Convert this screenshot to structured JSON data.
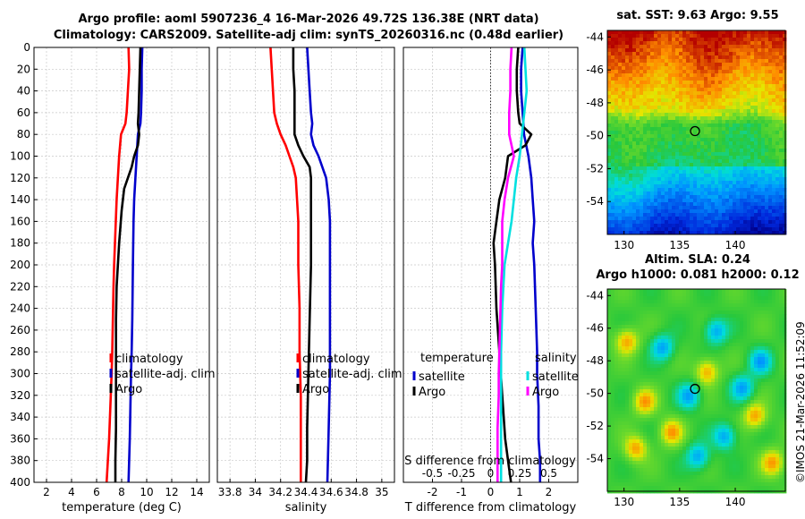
{
  "header": {
    "title_line1": "Argo profile: aoml 5907236_4 16-Mar-2026 49.72S 136.38E (NRT data)",
    "title_line2": "Climatology: CARS2009. Satellite-adj clim: synTS_20260316.nc (0.48d earlier)",
    "sst_title": "sat. SST: 9.63 Argo: 9.55",
    "sla_title1": "Altim. SLA: 0.24",
    "sla_title2": "Argo h1000: 0.081 h2000: 0.12",
    "credit": "©IMOS 21-Mar-2026 11:52:09"
  },
  "colors": {
    "climatology": "#ff0000",
    "satellite": "#0000cc",
    "argo": "#000000",
    "sal_satellite": "#00e0e0",
    "sal_argo": "#ff00ff",
    "grid": "#c8c8c8"
  },
  "chart_data": [
    {
      "type": "line",
      "id": "temperature",
      "xlabel": "temperature (deg C)",
      "xlim": [
        1,
        15
      ],
      "xticks": [
        "2",
        "4",
        "6",
        "8",
        "10",
        "12",
        "14"
      ],
      "ylim": [
        0,
        400
      ],
      "yticks": [
        "0",
        "20",
        "40",
        "60",
        "80",
        "100",
        "120",
        "140",
        "160",
        "180",
        "200",
        "220",
        "240",
        "260",
        "280",
        "300",
        "320",
        "340",
        "360",
        "380",
        "400"
      ],
      "legend": [
        "climatology",
        "satellite-adj. clim",
        "Argo"
      ],
      "series": [
        {
          "name": "climatology",
          "x": [
            8.55,
            8.6,
            8.5,
            8.4,
            8.3,
            7.95,
            7.8,
            7.6,
            7.5,
            7.4,
            7.35,
            7.3,
            7.25,
            7.2,
            7.1,
            7.0,
            6.9,
            6.8
          ],
          "depth": [
            0,
            20,
            40,
            60,
            70,
            80,
            100,
            140,
            170,
            200,
            220,
            250,
            280,
            300,
            330,
            360,
            380,
            400
          ]
        },
        {
          "name": "satellite-adj. clim",
          "x": [
            9.65,
            9.6,
            9.6,
            9.55,
            9.5,
            9.3,
            9.2,
            9.1,
            9.0,
            8.95,
            8.9,
            8.85,
            8.8,
            8.75,
            8.7,
            8.65,
            8.6,
            8.55
          ],
          "depth": [
            0,
            20,
            40,
            60,
            70,
            80,
            100,
            120,
            140,
            160,
            200,
            250,
            280,
            300,
            330,
            360,
            380,
            400
          ]
        },
        {
          "name": "Argo",
          "x": [
            9.5,
            9.45,
            9.4,
            9.35,
            9.3,
            9.4,
            9.3,
            9.0,
            8.8,
            8.5,
            8.2,
            8.0,
            7.8,
            7.7,
            7.6,
            7.55,
            7.55,
            7.55,
            7.5,
            7.5
          ],
          "depth": [
            0,
            20,
            40,
            60,
            70,
            80,
            90,
            100,
            110,
            120,
            130,
            150,
            180,
            200,
            220,
            250,
            300,
            350,
            380,
            400
          ]
        }
      ]
    },
    {
      "type": "line",
      "id": "salinity",
      "xlabel": "salinity",
      "xlim": [
        33.7,
        35.1
      ],
      "xticks": [
        "33.8",
        "34",
        "34.2",
        "34.4",
        "34.6",
        "34.8",
        "35"
      ],
      "ylim": [
        0,
        400
      ],
      "legend": [
        "climatology",
        "satellite-adj. clim",
        "Argo"
      ],
      "series": [
        {
          "name": "climatology",
          "x": [
            34.12,
            34.13,
            34.14,
            34.15,
            34.17,
            34.2,
            34.24,
            34.27,
            34.3,
            34.32,
            34.33,
            34.34,
            34.34,
            34.35,
            34.35,
            34.36,
            34.36,
            34.36,
            34.36
          ],
          "depth": [
            0,
            20,
            40,
            60,
            70,
            80,
            90,
            100,
            110,
            120,
            140,
            160,
            200,
            240,
            280,
            320,
            360,
            380,
            400
          ]
        },
        {
          "name": "satellite-adj. clim",
          "x": [
            34.41,
            34.42,
            34.43,
            34.44,
            34.45,
            34.44,
            34.46,
            34.5,
            34.56,
            34.58,
            34.59,
            34.59,
            34.59,
            34.59,
            34.58,
            34.57
          ],
          "depth": [
            0,
            20,
            40,
            60,
            70,
            80,
            90,
            100,
            120,
            140,
            160,
            200,
            250,
            300,
            350,
            400
          ]
        },
        {
          "name": "Argo",
          "x": [
            34.3,
            34.3,
            34.31,
            34.31,
            34.31,
            34.31,
            34.34,
            34.38,
            34.43,
            34.44,
            34.44,
            34.44,
            34.44,
            34.43,
            34.42,
            34.41,
            34.41,
            34.4
          ],
          "depth": [
            0,
            20,
            40,
            60,
            70,
            80,
            90,
            100,
            110,
            120,
            140,
            160,
            200,
            250,
            300,
            350,
            380,
            400
          ]
        }
      ]
    },
    {
      "type": "line",
      "id": "difference",
      "xlabel": "T difference from climatology",
      "xlabel2": "S difference from climatology",
      "xlim": [
        -3,
        3
      ],
      "xticks": [
        "-2",
        "-1",
        "0",
        "1",
        "2"
      ],
      "xticks2": [
        "-0.5",
        "-0.25",
        "0",
        "0.25",
        "0.5"
      ],
      "ylim": [
        0,
        400
      ],
      "legend_left_title": "temperature",
      "legend_right_title": "salinity",
      "legend_left": [
        "satellite",
        "Argo"
      ],
      "legend_right": [
        "satellite",
        "Argo"
      ],
      "series": [
        {
          "name": "temperature satellite",
          "x": [
            1.1,
            1.05,
            1.05,
            1.1,
            1.15,
            1.3,
            1.4,
            1.45,
            1.5,
            1.45,
            1.5,
            1.55,
            1.6,
            1.6,
            1.65,
            1.65,
            1.7,
            1.7
          ],
          "depth": [
            0,
            20,
            40,
            60,
            80,
            100,
            120,
            140,
            160,
            180,
            200,
            240,
            280,
            300,
            330,
            360,
            380,
            400
          ]
        },
        {
          "name": "temperature Argo",
          "x": [
            0.95,
            0.9,
            0.9,
            0.95,
            1.0,
            1.4,
            1.2,
            0.6,
            0.5,
            0.3,
            0.2,
            0.1,
            0.15,
            0.2,
            0.3,
            0.4,
            0.5,
            0.6,
            0.7
          ],
          "depth": [
            0,
            20,
            40,
            60,
            70,
            80,
            90,
            100,
            120,
            140,
            160,
            180,
            200,
            240,
            280,
            320,
            360,
            380,
            400
          ]
        },
        {
          "name": "salinity satellite",
          "x": [
            0.29,
            0.3,
            0.31,
            0.29,
            0.27,
            0.25,
            0.22,
            0.2,
            0.18,
            0.15,
            0.12,
            0.1,
            0.09,
            0.09,
            0.09,
            0.09,
            0.09
          ],
          "depth": [
            0,
            20,
            40,
            60,
            80,
            100,
            120,
            140,
            160,
            180,
            200,
            240,
            280,
            300,
            340,
            380,
            400
          ]
        },
        {
          "name": "salinity Argo",
          "x": [
            0.18,
            0.17,
            0.17,
            0.16,
            0.16,
            0.2,
            0.15,
            0.12,
            0.1,
            0.1,
            0.09,
            0.08,
            0.07,
            0.07,
            0.06,
            0.06,
            0.06
          ],
          "depth": [
            0,
            20,
            40,
            60,
            80,
            100,
            120,
            140,
            160,
            200,
            220,
            260,
            300,
            320,
            350,
            380,
            400
          ]
        }
      ]
    },
    {
      "type": "heatmap",
      "id": "sst_map",
      "title": "sat. SST: 9.63 Argo: 9.55",
      "xticks": [
        "130",
        "135",
        "140"
      ],
      "yticks": [
        "-44",
        "-46",
        "-48",
        "-50",
        "-52",
        "-54"
      ],
      "xlim": [
        128.5,
        144.5
      ],
      "ylim": [
        -56,
        -43.6
      ],
      "marker": {
        "lon": 136.38,
        "lat": -49.72
      }
    },
    {
      "type": "heatmap",
      "id": "sla_map",
      "title": "Altim. SLA: 0.24",
      "subtitle": "Argo h1000: 0.081 h2000: 0.12",
      "xticks": [
        "130",
        "135",
        "140"
      ],
      "yticks": [
        "-44",
        "-46",
        "-48",
        "-50",
        "-52",
        "-54"
      ],
      "xlim": [
        128.5,
        144.5
      ],
      "ylim": [
        -56,
        -43.6
      ],
      "marker": {
        "lon": 136.38,
        "lat": -49.72
      }
    }
  ]
}
